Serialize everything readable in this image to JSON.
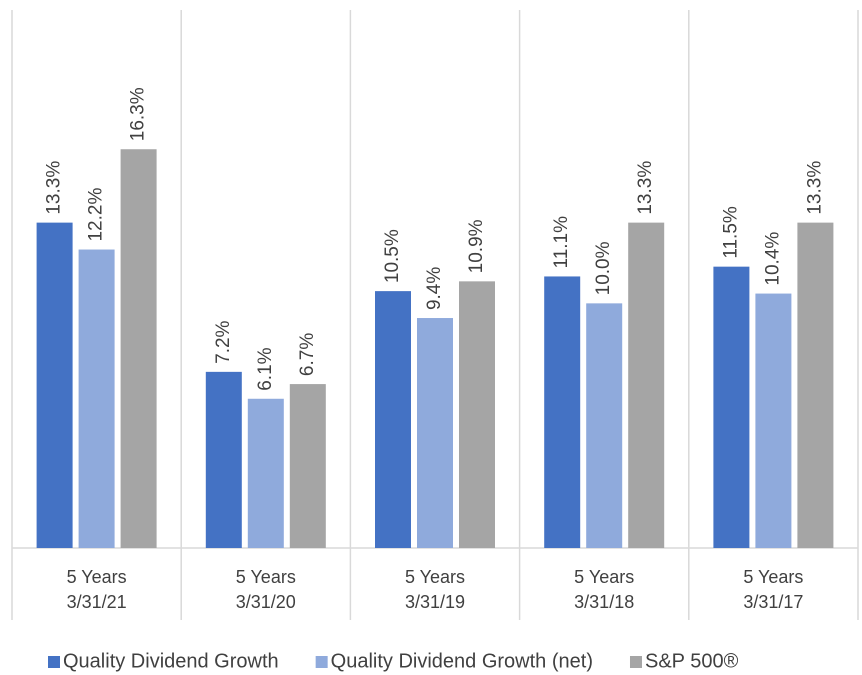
{
  "chart_data": {
    "type": "bar",
    "categories": [
      [
        "5 Years",
        "3/31/21"
      ],
      [
        "5 Years",
        "3/31/20"
      ],
      [
        "5 Years",
        "3/31/19"
      ],
      [
        "5 Years",
        "3/31/18"
      ],
      [
        "5 Years",
        "3/31/17"
      ]
    ],
    "series": [
      {
        "name": "Quality Dividend Growth",
        "color": "#4472c4",
        "values": [
          13.3,
          7.2,
          10.5,
          11.1,
          11.5
        ],
        "value_labels": [
          "13.3%",
          "7.2%",
          "10.5%",
          "11.1%",
          "11.5%"
        ]
      },
      {
        "name": "Quality Dividend Growth (net)",
        "color": "#8faadc",
        "values": [
          12.2,
          6.1,
          9.4,
          10.0,
          10.4
        ],
        "value_labels": [
          "12.2%",
          "6.1%",
          "9.4%",
          "10.0%",
          "10.4%"
        ]
      },
      {
        "name": "S&P 500®",
        "color": "#a5a5a5",
        "values": [
          16.3,
          6.7,
          10.9,
          13.3,
          13.3
        ],
        "value_labels": [
          "16.3%",
          "6.7%",
          "10.9%",
          "13.3%",
          "13.3%"
        ]
      }
    ],
    "ylim": [
      0,
      22.4
    ],
    "legend": "bottom"
  }
}
